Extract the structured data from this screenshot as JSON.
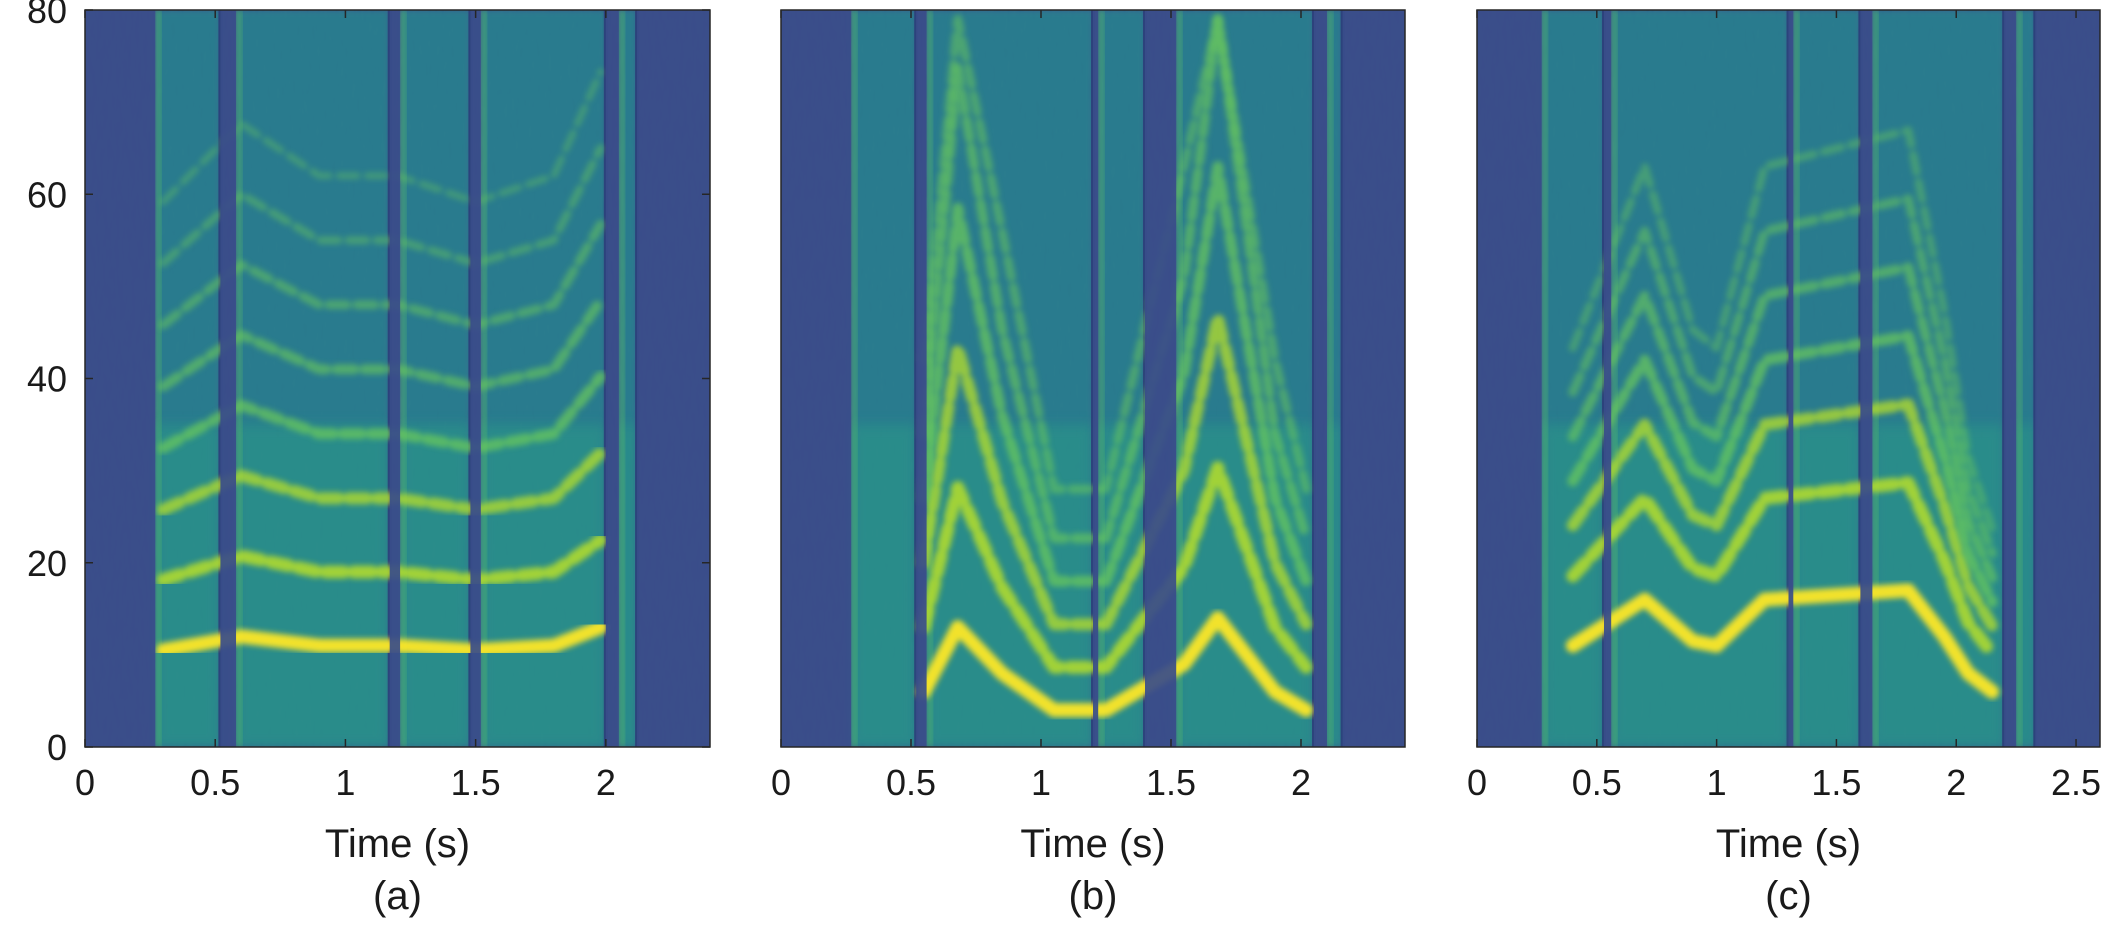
{
  "chart_data": [
    {
      "type": "heatmap",
      "panel_label": "(a)",
      "xlabel": "Time (s)",
      "ylabel": "",
      "xlim": [
        0,
        2.4
      ],
      "ylim": [
        0,
        80
      ],
      "xticks": [
        "0",
        "0.5",
        "1",
        "1.5",
        "2"
      ],
      "xtick_values": [
        0,
        0.5,
        1,
        1.5,
        2
      ],
      "yticks": [
        "0",
        "20",
        "40",
        "60",
        "80"
      ],
      "ytick_values": [
        0,
        20,
        40,
        60,
        80
      ],
      "colormap": "viridis",
      "voiced_segments": [
        [
          0.27,
          0.52
        ],
        [
          0.58,
          1.17
        ],
        [
          1.21,
          1.48
        ],
        [
          1.52,
          2.0
        ],
        [
          2.05,
          2.12
        ]
      ],
      "harmonic_bands_mel": [
        11,
        19,
        27,
        34,
        41,
        48,
        55,
        62
      ],
      "pitch_contour_first_band": [
        [
          0.3,
          10.5
        ],
        [
          0.6,
          12
        ],
        [
          0.9,
          11
        ],
        [
          1.2,
          11
        ],
        [
          1.5,
          10.5
        ],
        [
          1.8,
          11
        ],
        [
          1.98,
          13
        ]
      ]
    },
    {
      "type": "heatmap",
      "panel_label": "(b)",
      "xlabel": "Time (s)",
      "ylabel": "",
      "xlim": [
        0,
        2.4
      ],
      "ylim": [
        0,
        80
      ],
      "xticks": [
        "0",
        "0.5",
        "1",
        "1.5",
        "2"
      ],
      "xtick_values": [
        0,
        0.5,
        1,
        1.5,
        2
      ],
      "yticks": [],
      "colormap": "viridis",
      "voiced_segments": [
        [
          0.27,
          0.52
        ],
        [
          0.56,
          1.2
        ],
        [
          1.22,
          1.4
        ],
        [
          1.52,
          2.05
        ],
        [
          2.1,
          2.16
        ]
      ],
      "harmonic_bands_mel": [
        6,
        13,
        20,
        27,
        34,
        42
      ],
      "pitch_contour_first_band": [
        [
          0.55,
          6
        ],
        [
          0.68,
          13
        ],
        [
          0.85,
          8
        ],
        [
          1.05,
          4
        ],
        [
          1.25,
          4
        ],
        [
          1.55,
          9
        ],
        [
          1.68,
          14
        ],
        [
          1.9,
          6
        ],
        [
          2.02,
          4
        ]
      ]
    },
    {
      "type": "heatmap",
      "panel_label": "(c)",
      "xlabel": "Time (s)",
      "ylabel": "",
      "xlim": [
        0,
        2.6
      ],
      "ylim": [
        0,
        80
      ],
      "xticks": [
        "0",
        "0.5",
        "1",
        "1.5",
        "2",
        "2.5"
      ],
      "xtick_values": [
        0,
        0.5,
        1,
        1.5,
        2,
        2.5
      ],
      "yticks": [],
      "colormap": "viridis",
      "voiced_segments": [
        [
          0.27,
          0.53
        ],
        [
          0.56,
          1.3
        ],
        [
          1.32,
          1.6
        ],
        [
          1.65,
          2.2
        ],
        [
          2.25,
          2.33
        ]
      ],
      "harmonic_bands_mel": [
        16,
        27,
        35,
        42,
        49,
        56,
        63
      ],
      "pitch_contour_first_band": [
        [
          0.4,
          11
        ],
        [
          0.7,
          16
        ],
        [
          0.9,
          11.5
        ],
        [
          1.0,
          11
        ],
        [
          1.2,
          16
        ],
        [
          1.8,
          17
        ],
        [
          1.95,
          12
        ],
        [
          2.05,
          8
        ],
        [
          2.15,
          6
        ]
      ]
    }
  ]
}
